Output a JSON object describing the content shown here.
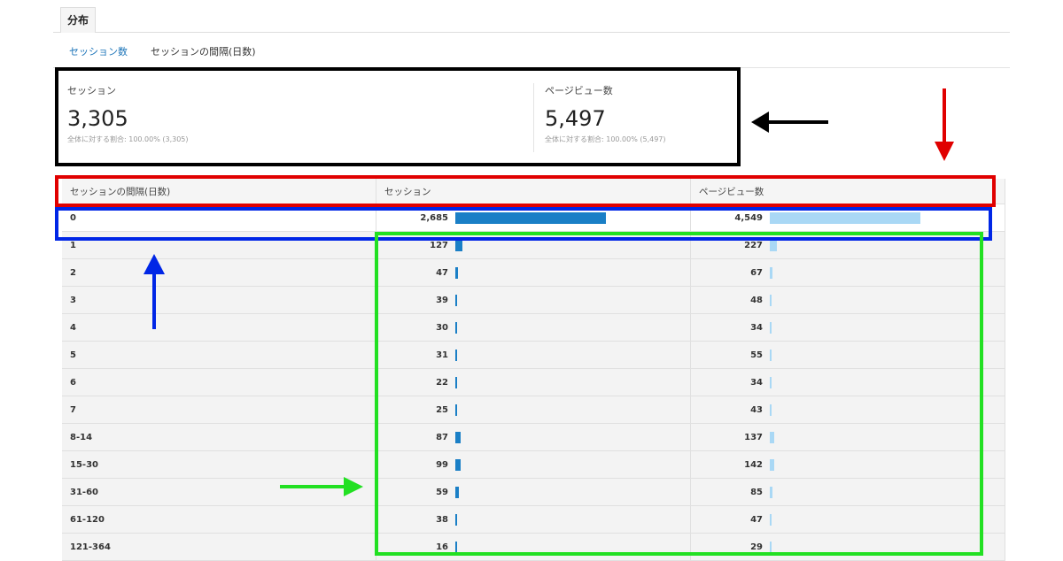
{
  "tab": {
    "label": "分布"
  },
  "subnav": {
    "link": "セッション数",
    "current": "セッションの間隔(日数)"
  },
  "summary": [
    {
      "label": "セッション",
      "value": "3,305",
      "note": "全体に対する割合: 100.00% (3,305)"
    },
    {
      "label": "ページビュー数",
      "value": "5,497",
      "note": "全体に対する割合: 100.00% (5,497)"
    }
  ],
  "table": {
    "headers": [
      "セッションの間隔(日数)",
      "セッション",
      "ページビュー数"
    ],
    "rows": [
      {
        "dim": "0",
        "sessions": "2,685",
        "pageviews": "4,549",
        "s": 2685,
        "p": 4549
      },
      {
        "dim": "1",
        "sessions": "127",
        "pageviews": "227",
        "s": 127,
        "p": 227
      },
      {
        "dim": "2",
        "sessions": "47",
        "pageviews": "67",
        "s": 47,
        "p": 67
      },
      {
        "dim": "3",
        "sessions": "39",
        "pageviews": "48",
        "s": 39,
        "p": 48
      },
      {
        "dim": "4",
        "sessions": "30",
        "pageviews": "34",
        "s": 30,
        "p": 34
      },
      {
        "dim": "5",
        "sessions": "31",
        "pageviews": "55",
        "s": 31,
        "p": 55
      },
      {
        "dim": "6",
        "sessions": "22",
        "pageviews": "34",
        "s": 22,
        "p": 34
      },
      {
        "dim": "7",
        "sessions": "25",
        "pageviews": "43",
        "s": 25,
        "p": 43
      },
      {
        "dim": "8-14",
        "sessions": "87",
        "pageviews": "137",
        "s": 87,
        "p": 137
      },
      {
        "dim": "15-30",
        "sessions": "99",
        "pageviews": "142",
        "s": 99,
        "p": 142
      },
      {
        "dim": "31-60",
        "sessions": "59",
        "pageviews": "85",
        "s": 59,
        "p": 85
      },
      {
        "dim": "61-120",
        "sessions": "38",
        "pageviews": "47",
        "s": 38,
        "p": 47
      },
      {
        "dim": "121-364",
        "sessions": "16",
        "pageviews": "29",
        "s": 16,
        "p": 29
      }
    ]
  },
  "colors": {
    "sessions_bar": "#1a7fc6",
    "pageviews_bar": "#a9d8f5",
    "annotation_black": "#000000",
    "annotation_red": "#e00000",
    "annotation_blue": "#0026e6",
    "annotation_green": "#22e022"
  }
}
